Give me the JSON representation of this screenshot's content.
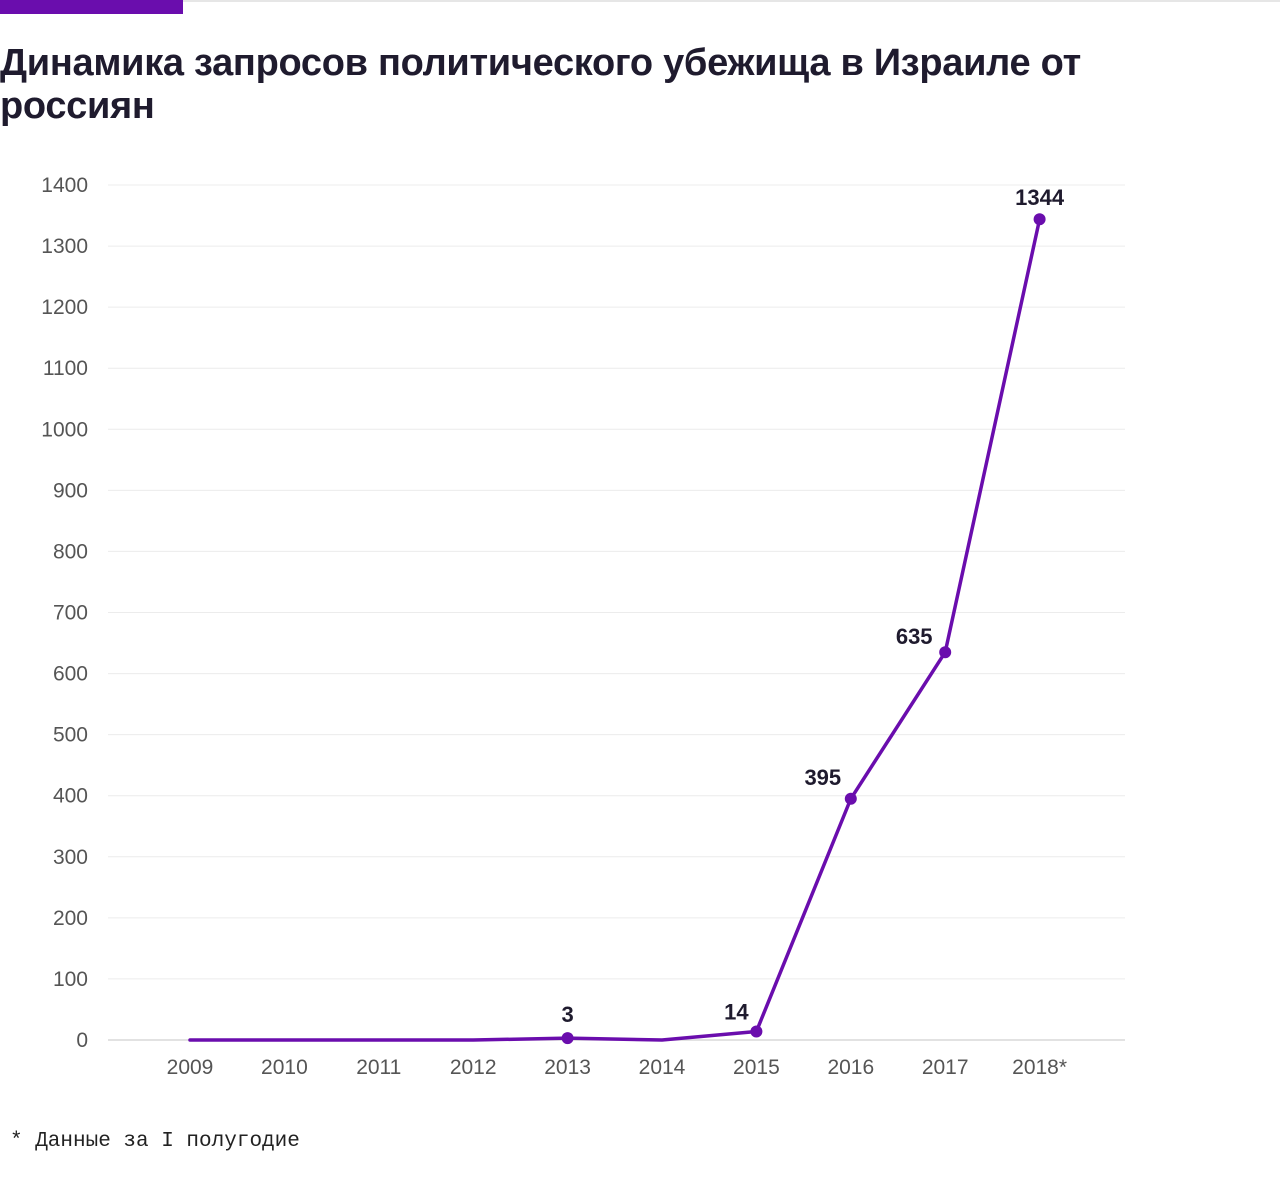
{
  "header": {
    "title": "Динамика запросов политического убежища в Израиле от россиян",
    "accent_color": "#6a0dad"
  },
  "footnote": "* Данные за I полугодие",
  "chart_data": {
    "type": "line",
    "title": "Динамика запросов политического убежища в Израиле от россиян",
    "xlabel": "",
    "ylabel": "",
    "categories": [
      "2009",
      "2010",
      "2011",
      "2012",
      "2013",
      "2014",
      "2015",
      "2016",
      "2017",
      "2018*"
    ],
    "series": [
      {
        "values": [
          0,
          0,
          0,
          0,
          3,
          0,
          14,
          395,
          635,
          1344
        ],
        "color": "#6a0dad"
      }
    ],
    "data_labels": {
      "2013": "3",
      "2015": "14",
      "2016": "395",
      "2017": "635",
      "2018*": "1344"
    },
    "ylim": [
      0,
      1400
    ],
    "yticks": [
      0,
      100,
      200,
      300,
      400,
      500,
      600,
      700,
      800,
      900,
      1000,
      1100,
      1200,
      1300,
      1400
    ],
    "grid": true,
    "legend": "none"
  }
}
